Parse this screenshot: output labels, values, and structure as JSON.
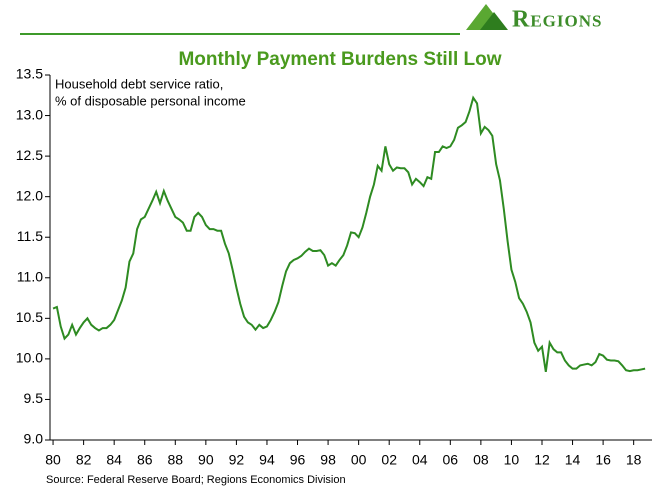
{
  "brand": "Regions",
  "chart_data": {
    "type": "line",
    "title": "Monthly Payment Burdens Still Low",
    "annotation": [
      "Household debt service ratio,",
      "% of disposable personal income"
    ],
    "source": "Source: Federal Reserve Board; Regions Economics Division",
    "xlim": [
      1979.8,
      2019.2
    ],
    "ylim": [
      9,
      13.5
    ],
    "xticks": [
      {
        "value": 1980,
        "label": "80"
      },
      {
        "value": 1982,
        "label": "82"
      },
      {
        "value": 1984,
        "label": "84"
      },
      {
        "value": 1986,
        "label": "86"
      },
      {
        "value": 1988,
        "label": "88"
      },
      {
        "value": 1990,
        "label": "90"
      },
      {
        "value": 1992,
        "label": "92"
      },
      {
        "value": 1994,
        "label": "94"
      },
      {
        "value": 1996,
        "label": "96"
      },
      {
        "value": 1998,
        "label": "98"
      },
      {
        "value": 2000,
        "label": "00"
      },
      {
        "value": 2002,
        "label": "02"
      },
      {
        "value": 2004,
        "label": "04"
      },
      {
        "value": 2006,
        "label": "06"
      },
      {
        "value": 2008,
        "label": "08"
      },
      {
        "value": 2010,
        "label": "10"
      },
      {
        "value": 2012,
        "label": "12"
      },
      {
        "value": 2014,
        "label": "14"
      },
      {
        "value": 2016,
        "label": "16"
      },
      {
        "value": 2018,
        "label": "18"
      }
    ],
    "yticks": [
      {
        "value": 9,
        "label": "9.0"
      },
      9.5,
      {
        "value": 10,
        "label": "10.0"
      },
      10.5,
      {
        "value": 11,
        "label": "11.0"
      },
      11.5,
      {
        "value": 12,
        "label": "12.0"
      },
      12.5,
      {
        "value": 13,
        "label": "13.0"
      },
      13.5
    ],
    "x": [
      1980,
      1980.25,
      1980.5,
      1980.75,
      1981,
      1981.25,
      1981.5,
      1981.75,
      1982,
      1982.25,
      1982.5,
      1982.75,
      1983,
      1983.25,
      1983.5,
      1983.75,
      1984,
      1984.25,
      1984.5,
      1984.75,
      1985,
      1985.25,
      1985.5,
      1985.75,
      1986,
      1986.25,
      1986.5,
      1986.75,
      1987,
      1987.25,
      1987.5,
      1987.75,
      1988,
      1988.25,
      1988.5,
      1988.75,
      1989,
      1989.25,
      1989.5,
      1989.75,
      1990,
      1990.25,
      1990.5,
      1990.75,
      1991,
      1991.25,
      1991.5,
      1991.75,
      1992,
      1992.25,
      1992.5,
      1992.75,
      1993,
      1993.25,
      1993.5,
      1993.75,
      1994,
      1994.25,
      1994.5,
      1994.75,
      1995,
      1995.25,
      1995.5,
      1995.75,
      1996,
      1996.25,
      1996.5,
      1996.75,
      1997,
      1997.25,
      1997.5,
      1997.75,
      1998,
      1998.25,
      1998.5,
      1998.75,
      1999,
      1999.25,
      1999.5,
      1999.75,
      2000,
      2000.25,
      2000.5,
      2000.75,
      2001,
      2001.25,
      2001.5,
      2001.75,
      2002,
      2002.25,
      2002.5,
      2002.75,
      2003,
      2003.25,
      2003.5,
      2003.75,
      2004,
      2004.25,
      2004.5,
      2004.75,
      2005,
      2005.25,
      2005.5,
      2005.75,
      2006,
      2006.25,
      2006.5,
      2006.75,
      2007,
      2007.25,
      2007.5,
      2007.75,
      2008,
      2008.25,
      2008.5,
      2008.75,
      2009,
      2009.25,
      2009.5,
      2009.75,
      2010,
      2010.25,
      2010.5,
      2010.75,
      2011,
      2011.25,
      2011.5,
      2011.75,
      2012,
      2012.25,
      2012.5,
      2012.75,
      2013,
      2013.25,
      2013.5,
      2013.75,
      2014,
      2014.25,
      2014.5,
      2014.75,
      2015,
      2015.25,
      2015.5,
      2015.75,
      2016,
      2016.25,
      2016.5,
      2016.75,
      2017,
      2017.25,
      2017.5,
      2017.75,
      2018,
      2018.25,
      2018.5,
      2018.75
    ],
    "series": [
      {
        "name": "Household debt service ratio",
        "color": "#2e8b22",
        "values": [
          10.62,
          10.64,
          10.4,
          10.25,
          10.3,
          10.42,
          10.3,
          10.38,
          10.45,
          10.5,
          10.42,
          10.38,
          10.35,
          10.38,
          10.38,
          10.42,
          10.48,
          10.6,
          10.72,
          10.88,
          11.2,
          11.3,
          11.6,
          11.72,
          11.75,
          11.85,
          11.95,
          12.06,
          11.92,
          12.07,
          11.95,
          11.85,
          11.75,
          11.72,
          11.68,
          11.58,
          11.58,
          11.75,
          11.8,
          11.75,
          11.65,
          11.6,
          11.6,
          11.58,
          11.58,
          11.42,
          11.3,
          11.1,
          10.88,
          10.68,
          10.52,
          10.45,
          10.42,
          10.36,
          10.42,
          10.38,
          10.4,
          10.48,
          10.58,
          10.7,
          10.9,
          11.08,
          11.18,
          11.22,
          11.24,
          11.27,
          11.32,
          11.36,
          11.33,
          11.33,
          11.34,
          11.28,
          11.15,
          11.18,
          11.15,
          11.22,
          11.28,
          11.4,
          11.56,
          11.55,
          11.5,
          11.62,
          11.8,
          12.0,
          12.15,
          12.38,
          12.32,
          12.62,
          12.4,
          12.32,
          12.36,
          12.35,
          12.35,
          12.3,
          12.15,
          12.22,
          12.18,
          12.13,
          12.24,
          12.22,
          12.55,
          12.55,
          12.62,
          12.6,
          12.62,
          12.7,
          12.85,
          12.88,
          12.92,
          13.05,
          13.22,
          13.15,
          12.78,
          12.86,
          12.82,
          12.75,
          12.4,
          12.2,
          11.85,
          11.45,
          11.1,
          10.95,
          10.75,
          10.68,
          10.58,
          10.45,
          10.2,
          10.1,
          10.15,
          9.84,
          10.2,
          10.12,
          10.08,
          10.08,
          9.98,
          9.92,
          9.88,
          9.88,
          9.92,
          9.93,
          9.94,
          9.92,
          9.96,
          10.06,
          10.04,
          9.99,
          9.98,
          9.98,
          9.97,
          9.92,
          9.86,
          9.85,
          9.86,
          9.86,
          9.87,
          9.88
        ]
      }
    ]
  }
}
